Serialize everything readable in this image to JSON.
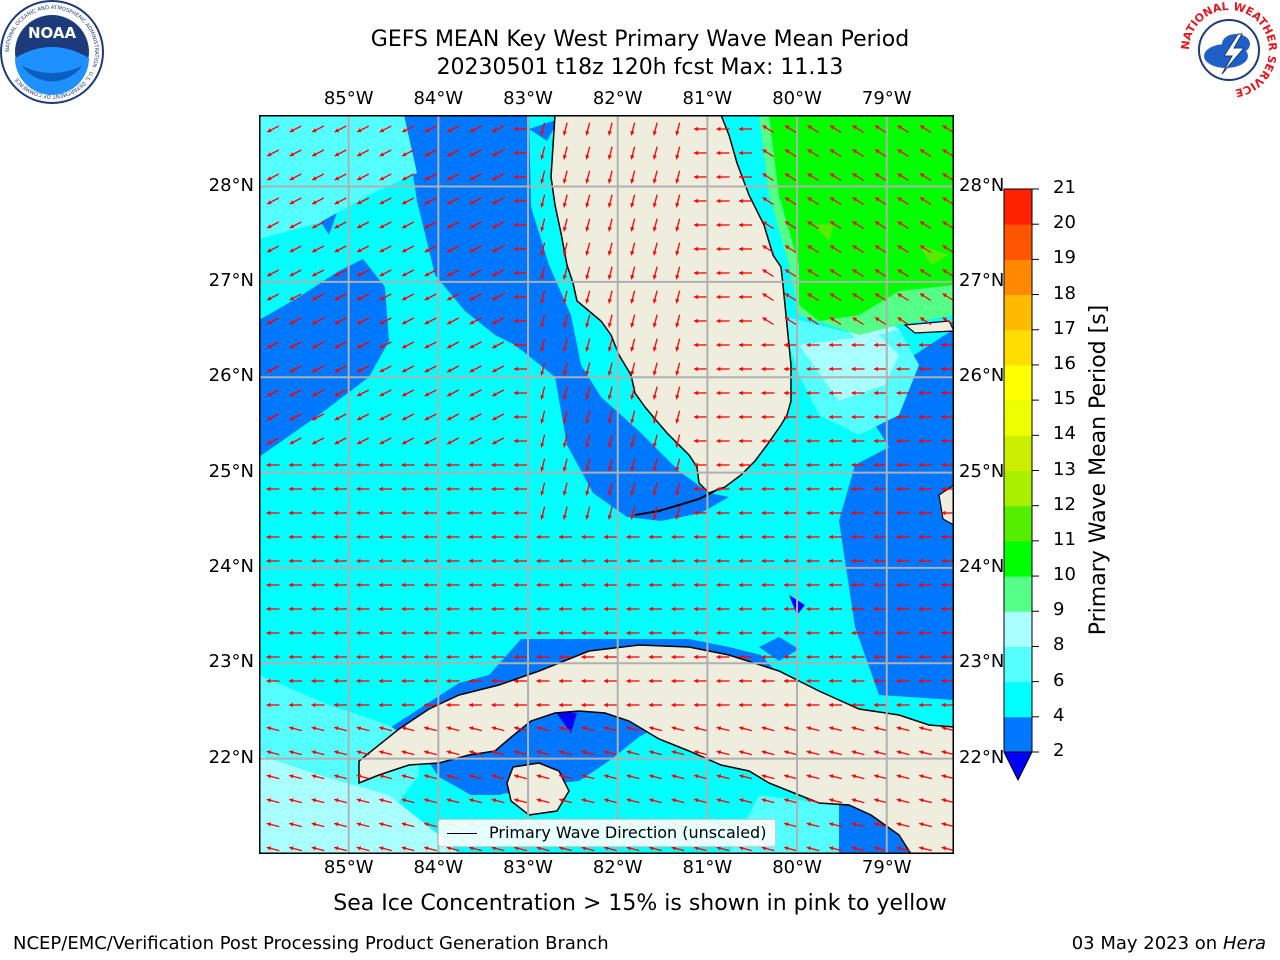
{
  "title_line1": "GEFS MEAN Key West Primary Wave Mean Period",
  "title_line2": "20230501 t18z 120h fcst   Max: 11.13",
  "lon_ticks": [
    {
      "label": "85°W",
      "lon": -85
    },
    {
      "label": "84°W",
      "lon": -84
    },
    {
      "label": "83°W",
      "lon": -83
    },
    {
      "label": "82°W",
      "lon": -82
    },
    {
      "label": "81°W",
      "lon": -81
    },
    {
      "label": "80°W",
      "lon": -80
    },
    {
      "label": "79°W",
      "lon": -79
    }
  ],
  "lat_ticks": [
    {
      "label": "28°N",
      "lat": 28
    },
    {
      "label": "27°N",
      "lat": 27
    },
    {
      "label": "26°N",
      "lat": 26
    },
    {
      "label": "25°N",
      "lat": 25
    },
    {
      "label": "24°N",
      "lat": 24
    },
    {
      "label": "23°N",
      "lat": 23
    },
    {
      "label": "22°N",
      "lat": 22
    }
  ],
  "map_extent": {
    "lon_min": -86.0,
    "lon_max": -78.25,
    "lat_min": 21.0,
    "lat_max": 28.75
  },
  "colorbar": {
    "label": "Primary Wave Mean Period [s]",
    "ticks": [
      "2",
      "4",
      "6",
      "8",
      "9",
      "10",
      "11",
      "12",
      "13",
      "14",
      "15",
      "16",
      "17",
      "18",
      "19",
      "20",
      "21"
    ],
    "colors": [
      "#0077ff",
      "#00ffff",
      "#55ffff",
      "#aaffff",
      "#55ff88",
      "#00ff00",
      "#55ee00",
      "#aaee00",
      "#ccee00",
      "#eeff00",
      "#ffff00",
      "#ffdd00",
      "#ffbb00",
      "#ff8800",
      "#ff5500",
      "#ff2200"
    ],
    "under_color": "#0000ff"
  },
  "legend_label": "Primary Wave Direction (unscaled)",
  "caption": "Sea Ice Concentration > 15% is shown in pink to yellow",
  "footer_left": "NCEP/EMC/Verification Post Processing Product Generation Branch",
  "footer_right_date": "03 May 2023 on",
  "footer_right_host": "Hera",
  "logo_left": {
    "text": "NOAA",
    "ring_text": "NATIONAL OCEANIC AND ATMOSPHERIC ADMINISTRATION · U.S. DEPARTMENT OF COMMERCE"
  },
  "logo_right": {
    "ring_text": "NATIONAL WEATHER SERVICE"
  },
  "colors": {
    "land": "#efedde",
    "ocean_base": "#00ffff",
    "arrow": "#ff0000",
    "grid": "#b0b0b0"
  }
}
